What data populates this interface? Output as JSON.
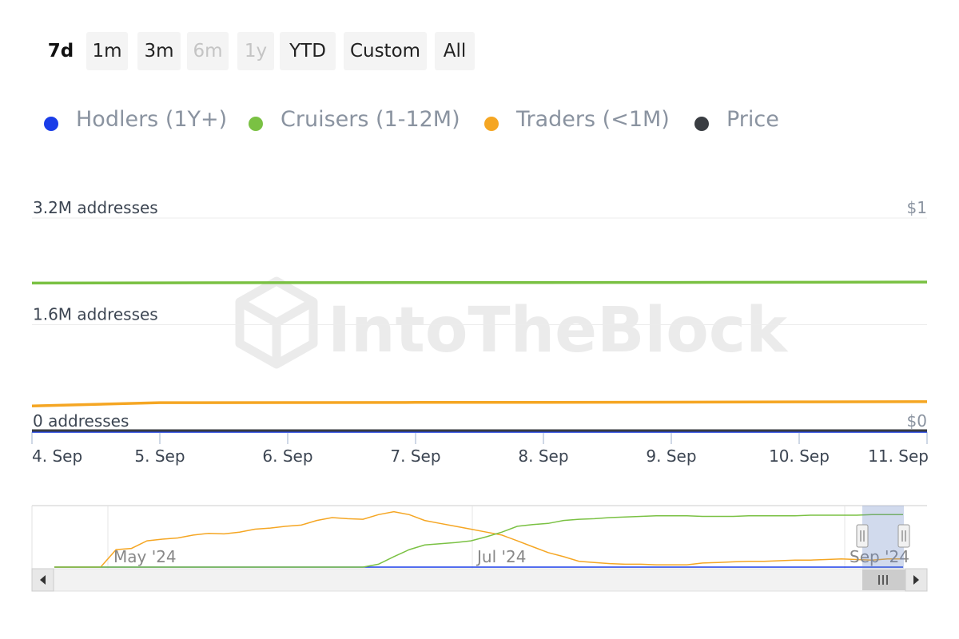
{
  "range_buttons": [
    "7d",
    "1m",
    "3m",
    "6m",
    "1y",
    "YTD",
    "Custom",
    "All"
  ],
  "range_selected": "7d",
  "range_disabled": [
    "6m",
    "1y"
  ],
  "legend": [
    {
      "label": "Hodlers (1Y+)",
      "color": "#1a3de8"
    },
    {
      "label": "Cruisers (1-12M)",
      "color": "#7ac143"
    },
    {
      "label": "Traders (<1M)",
      "color": "#f5a623"
    },
    {
      "label": "Price",
      "color": "#3a3d42"
    }
  ],
  "watermark": "IntoTheBlock",
  "chart_data": {
    "type": "line",
    "x": [
      "4. Sep",
      "5. Sep",
      "6. Sep",
      "7. Sep",
      "8. Sep",
      "9. Sep",
      "10. Sep",
      "11. Sep"
    ],
    "y_left_ticks": [
      "0 addresses",
      "1.6M addresses",
      "3.2M addresses"
    ],
    "y_left_range": [
      0,
      3200000
    ],
    "y_right_ticks": [
      "$0",
      "$1"
    ],
    "y_right_range": [
      0,
      1
    ],
    "series": [
      {
        "name": "Hodlers (1Y+)",
        "color": "#1a3de8",
        "values": [
          0,
          0,
          0,
          0,
          0,
          0,
          0,
          0
        ]
      },
      {
        "name": "Cruisers (1-12M)",
        "color": "#7ac143",
        "values": [
          2225000,
          2228000,
          2230000,
          2232000,
          2233000,
          2234000,
          2236000,
          2240000
        ]
      },
      {
        "name": "Traders (<1M)",
        "color": "#f5a623",
        "values": [
          380000,
          430000,
          432000,
          434000,
          435000,
          438000,
          442000,
          445000
        ]
      },
      {
        "name": "Price",
        "axis": "right",
        "color": "#3a3d42",
        "values": [
          0,
          0,
          0,
          0,
          0,
          0,
          0,
          0
        ]
      }
    ],
    "grid": true,
    "legend_position": "top-left",
    "navigator": {
      "labels": [
        "May '24",
        "Jul '24",
        "Sep '24"
      ],
      "traders": [
        0,
        0,
        0,
        0,
        0.3,
        0.32,
        0.45,
        0.48,
        0.5,
        0.55,
        0.58,
        0.57,
        0.6,
        0.65,
        0.67,
        0.7,
        0.72,
        0.8,
        0.85,
        0.83,
        0.82,
        0.9,
        0.95,
        0.9,
        0.8,
        0.75,
        0.7,
        0.65,
        0.6,
        0.55,
        0.45,
        0.35,
        0.25,
        0.18,
        0.1,
        0.08,
        0.06,
        0.05,
        0.05,
        0.04,
        0.04,
        0.04,
        0.07,
        0.08,
        0.09,
        0.1,
        0.1,
        0.11,
        0.12,
        0.12,
        0.13,
        0.14,
        0.13,
        0.12,
        0.14,
        0.14
      ],
      "cruisers": [
        0,
        0,
        0,
        0,
        0,
        0,
        0,
        0,
        0,
        0,
        0,
        0,
        0,
        0,
        0,
        0,
        0,
        0,
        0,
        0,
        0,
        0.05,
        0.18,
        0.3,
        0.38,
        0.4,
        0.42,
        0.45,
        0.52,
        0.6,
        0.7,
        0.73,
        0.75,
        0.8,
        0.82,
        0.83,
        0.85,
        0.86,
        0.87,
        0.88,
        0.88,
        0.88,
        0.87,
        0.87,
        0.87,
        0.88,
        0.88,
        0.88,
        0.88,
        0.89,
        0.89,
        0.89,
        0.89,
        0.9,
        0.9,
        0.9
      ],
      "hodlers": [
        0,
        0,
        0,
        0,
        0,
        0,
        0,
        0,
        0,
        0,
        0,
        0,
        0,
        0,
        0,
        0,
        0,
        0,
        0,
        0,
        0,
        0,
        0,
        0,
        0,
        0,
        0,
        0,
        0,
        0,
        0,
        0,
        0,
        0,
        0,
        0,
        0,
        0,
        0,
        0,
        0,
        0,
        0,
        0,
        0,
        0,
        0,
        0,
        0,
        0,
        0,
        0,
        0,
        0,
        0,
        0
      ],
      "scroll_left_icon": "left-arrow",
      "scroll_right_icon": "right-arrow",
      "scroll_grip_icon": "grip-lines"
    }
  }
}
